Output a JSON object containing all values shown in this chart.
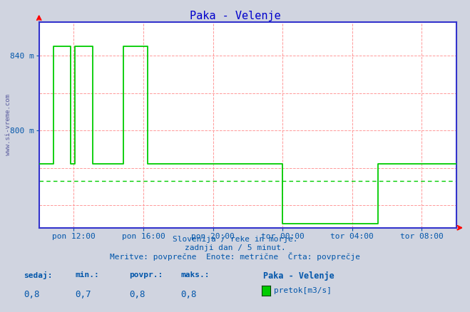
{
  "title": "Paka - Velenje",
  "title_color": "#0000cc",
  "bg_color": "#d0d4e0",
  "plot_bg_color": "#ffffff",
  "grid_color": "#ff9999",
  "line_color": "#00cc00",
  "avg_color": "#00cc00",
  "axis_color": "#3333cc",
  "tick_color": "#0055aa",
  "watermark": "www.si-vreme.com",
  "watermark_color": "#1a1a7a",
  "xtick_labels": [
    "pon 12:00",
    "pon 16:00",
    "pon 20:00",
    "tor 00:00",
    "tor 04:00",
    "tor 08:00"
  ],
  "xtick_positions": [
    24,
    72,
    120,
    168,
    216,
    264
  ],
  "yticks": [
    800,
    840
  ],
  "ytick_labels": [
    "800 m",
    "840 m"
  ],
  "xmin": 0,
  "xmax": 288,
  "ymin": 748,
  "ymax": 858,
  "avg_value": 773,
  "footer_line1": "Slovenija / reke in morje.",
  "footer_line2": "zadnji dan / 5 minut.",
  "footer_line3": "Meritve: povprečne  Enote: metrične  Črta: povprečje",
  "stat_labels": [
    "sedaj:",
    "min.:",
    "povpr.:",
    "maks.:"
  ],
  "stat_values": [
    "0,8",
    "0,7",
    "0,8",
    "0,8"
  ],
  "legend_label": "pretok[m3/s]",
  "legend_station": "Paka - Velenje",
  "step_x": [
    0,
    10,
    10,
    22,
    22,
    25,
    25,
    37,
    37,
    58,
    58,
    75,
    75,
    168,
    168,
    234,
    234,
    288
  ],
  "step_y": [
    782,
    782,
    845,
    845,
    782,
    782,
    845,
    845,
    782,
    782,
    845,
    845,
    782,
    782,
    750,
    750,
    782,
    782
  ],
  "hgrid_y": [
    760,
    780,
    800,
    820,
    840
  ],
  "vgrid_x": [
    24,
    72,
    120,
    168,
    216,
    264
  ]
}
